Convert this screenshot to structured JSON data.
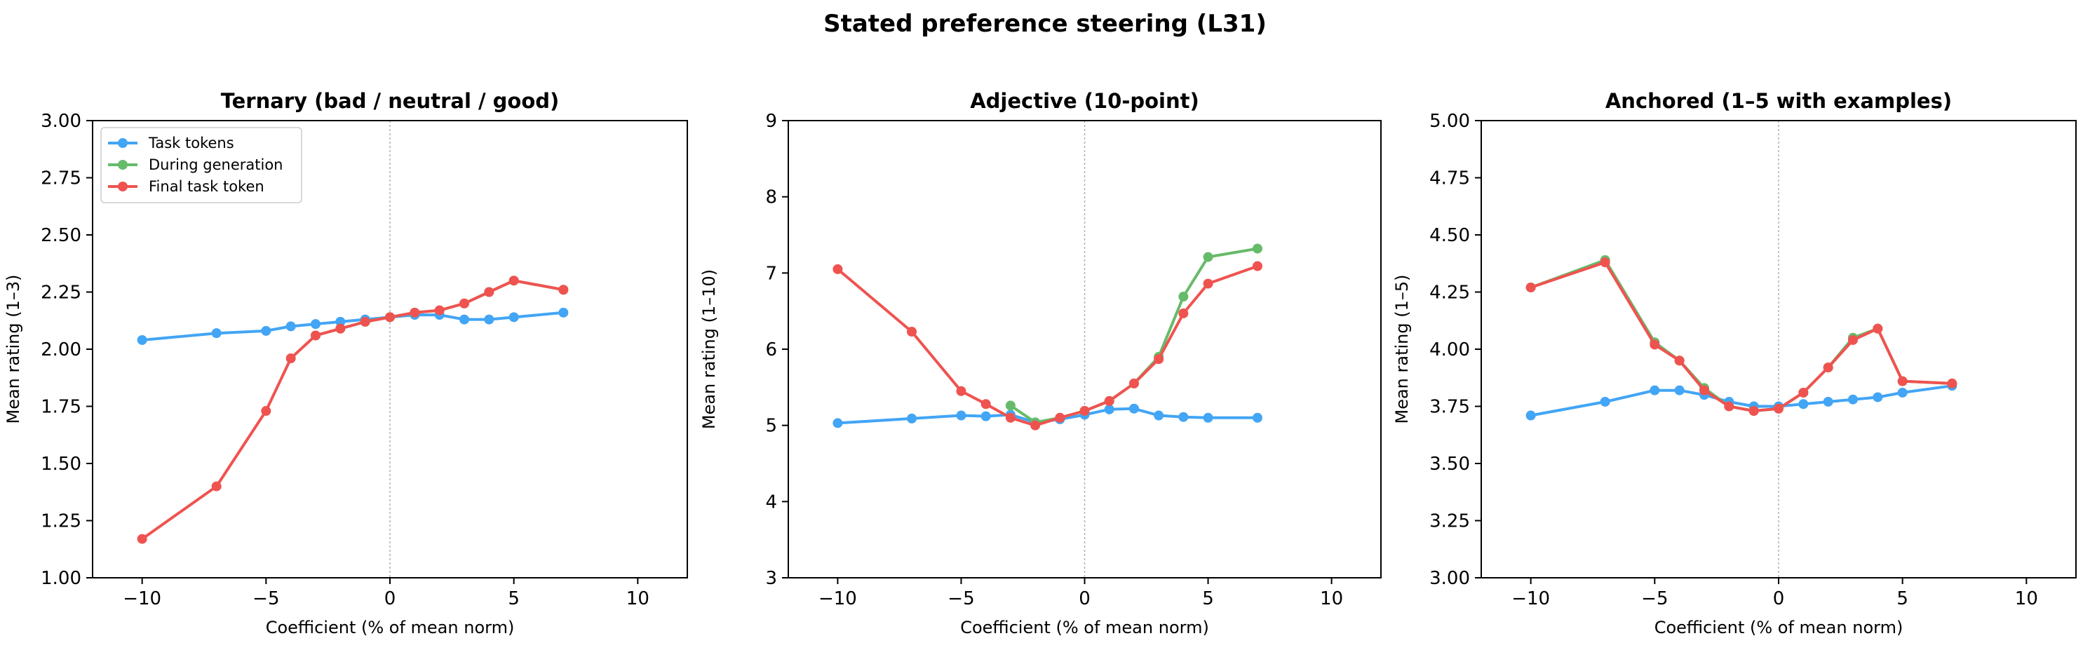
{
  "suptitle": "Stated preference steering (L31)",
  "colors": {
    "task_tokens": "#42a5f5",
    "during_generation": "#66bb6a",
    "final_task_token": "#ef5350"
  },
  "chart_data": [
    {
      "type": "line",
      "title": "Ternary (bad / neutral / good)",
      "xlabel": "Coefficient (% of mean norm)",
      "ylabel": "Mean rating (1–3)",
      "xlim": [
        -12,
        12
      ],
      "ylim": [
        1.0,
        3.0
      ],
      "xticks": [
        -10,
        -5,
        0,
        5,
        10
      ],
      "xtick_labels": [
        "−10",
        "−5",
        "0",
        "5",
        "10"
      ],
      "yticks": [
        1.0,
        1.25,
        1.5,
        1.75,
        2.0,
        2.25,
        2.5,
        2.75,
        3.0
      ],
      "ytick_labels": [
        "1.00",
        "1.25",
        "1.50",
        "1.75",
        "2.00",
        "2.25",
        "2.50",
        "2.75",
        "3.00"
      ],
      "grid": false,
      "legend": "top-left",
      "series": [
        {
          "name": "Task tokens",
          "color": "#42a5f5",
          "x": [
            -10,
            -7,
            -5,
            -4,
            -3,
            -2,
            -1,
            0,
            1,
            2,
            3,
            4,
            5,
            7
          ],
          "y": [
            2.04,
            2.07,
            2.08,
            2.1,
            2.11,
            2.12,
            2.13,
            2.14,
            2.15,
            2.15,
            2.13,
            2.13,
            2.14,
            2.16
          ]
        },
        {
          "name": "During generation",
          "color": "#66bb6a",
          "x": [
            -3,
            -2,
            -1,
            0,
            1,
            2,
            3,
            4,
            5,
            7
          ],
          "y": [
            2.06,
            2.09,
            2.12,
            2.14,
            2.16,
            2.17,
            2.2,
            2.25,
            2.3,
            2.26
          ]
        },
        {
          "name": "Final task token",
          "color": "#ef5350",
          "x": [
            -10,
            -7,
            -5,
            -4,
            -3,
            -2,
            -1,
            0,
            1,
            2,
            3,
            4,
            5,
            7
          ],
          "y": [
            1.17,
            1.4,
            1.73,
            1.96,
            2.06,
            2.09,
            2.12,
            2.14,
            2.16,
            2.17,
            2.2,
            2.25,
            2.3,
            2.26
          ]
        }
      ]
    },
    {
      "type": "line",
      "title": "Adjective (10-point)",
      "xlabel": "Coefficient (% of mean norm)",
      "ylabel": "Mean rating (1–10)",
      "xlim": [
        -12,
        12
      ],
      "ylim": [
        3,
        9
      ],
      "xticks": [
        -10,
        -5,
        0,
        5,
        10
      ],
      "xtick_labels": [
        "−10",
        "−5",
        "0",
        "5",
        "10"
      ],
      "yticks": [
        3,
        4,
        5,
        6,
        7,
        8,
        9
      ],
      "ytick_labels": [
        "3",
        "4",
        "5",
        "6",
        "7",
        "8",
        "9"
      ],
      "grid": false,
      "series": [
        {
          "name": "Task tokens",
          "color": "#42a5f5",
          "x": [
            -10,
            -7,
            -5,
            -4,
            -3,
            -2,
            -1,
            0,
            1,
            2,
            3,
            4,
            5,
            7
          ],
          "y": [
            5.03,
            5.09,
            5.13,
            5.12,
            5.14,
            5.04,
            5.08,
            5.14,
            5.21,
            5.22,
            5.13,
            5.11,
            5.1,
            5.1
          ]
        },
        {
          "name": "During generation",
          "color": "#66bb6a",
          "x": [
            -3,
            -2,
            -1,
            0,
            1,
            2,
            3,
            4,
            5,
            7
          ],
          "y": [
            5.26,
            5.04,
            5.1,
            5.19,
            5.32,
            5.55,
            5.9,
            6.69,
            7.21,
            7.32
          ]
        },
        {
          "name": "Final task token",
          "color": "#ef5350",
          "x": [
            -10,
            -7,
            -5,
            -4,
            -3,
            -2,
            -1,
            0,
            1,
            2,
            3,
            4,
            5,
            7
          ],
          "y": [
            7.05,
            6.23,
            5.45,
            5.28,
            5.1,
            5.0,
            5.1,
            5.19,
            5.32,
            5.55,
            5.87,
            6.47,
            6.86,
            7.09
          ]
        }
      ]
    },
    {
      "type": "line",
      "title": "Anchored (1–5 with examples)",
      "xlabel": "Coefficient (% of mean norm)",
      "ylabel": "Mean rating (1–5)",
      "xlim": [
        -12,
        12
      ],
      "ylim": [
        3.0,
        5.0
      ],
      "xticks": [
        -10,
        -5,
        0,
        5,
        10
      ],
      "xtick_labels": [
        "−10",
        "−5",
        "0",
        "5",
        "10"
      ],
      "yticks": [
        3.0,
        3.25,
        3.5,
        3.75,
        4.0,
        4.25,
        4.5,
        4.75,
        5.0
      ],
      "ytick_labels": [
        "3.00",
        "3.25",
        "3.50",
        "3.75",
        "4.00",
        "4.25",
        "4.50",
        "4.75",
        "5.00"
      ],
      "grid": false,
      "series": [
        {
          "name": "Task tokens",
          "color": "#42a5f5",
          "x": [
            -10,
            -7,
            -5,
            -4,
            -3,
            -2,
            -1,
            0,
            1,
            2,
            3,
            4,
            5,
            7
          ],
          "y": [
            3.71,
            3.77,
            3.82,
            3.82,
            3.8,
            3.77,
            3.75,
            3.75,
            3.76,
            3.77,
            3.78,
            3.79,
            3.81,
            3.84
          ]
        },
        {
          "name": "During generation",
          "color": "#66bb6a",
          "x": [
            -10,
            -7,
            -5,
            -4,
            -3,
            -2,
            -1,
            0,
            1,
            2,
            3,
            4,
            5,
            7
          ],
          "y": [
            4.27,
            4.39,
            4.03,
            3.95,
            3.83,
            3.75,
            3.73,
            3.74,
            3.81,
            3.92,
            4.05,
            4.09,
            3.86,
            3.85
          ]
        },
        {
          "name": "Final task token",
          "color": "#ef5350",
          "x": [
            -10,
            -7,
            -5,
            -4,
            -3,
            -2,
            -1,
            0,
            1,
            2,
            3,
            4,
            5,
            7
          ],
          "y": [
            4.27,
            4.38,
            4.02,
            3.95,
            3.82,
            3.75,
            3.73,
            3.74,
            3.81,
            3.92,
            4.04,
            4.09,
            3.86,
            3.85
          ]
        }
      ]
    }
  ]
}
